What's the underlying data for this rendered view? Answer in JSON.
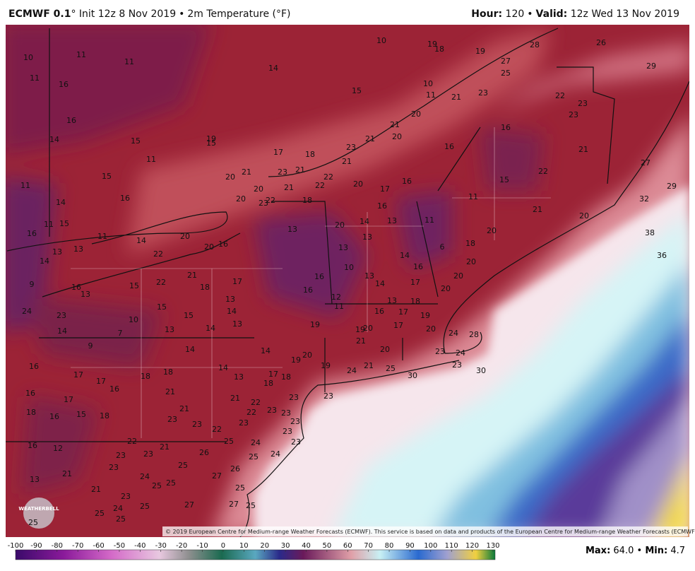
{
  "header": {
    "model": "ECMWF 0.1",
    "init": "° Init 12z 8 Nov 2019",
    "separator": "•",
    "field": "2m Temperature (°F)",
    "hour_label": "Hour:",
    "hour": "120",
    "valid_label": "Valid:",
    "valid": "12z Wed 13 Nov 2019"
  },
  "map": {
    "logo": "WEATHERBELL",
    "copyright": "© 2019 European Centre for Medium-range Weather Forecasts (ECMWF). This service is based on data and products of the European Centre for Medium-range Weather Forecasts (ECMWF).",
    "labels": [
      10,
      11,
      11,
      11,
      16,
      14,
      15,
      10,
      19,
      18,
      19,
      27,
      25,
      28,
      26,
      29,
      10,
      11,
      21,
      23,
      22,
      23,
      23,
      20,
      21,
      20,
      21,
      23,
      21,
      18,
      17,
      19,
      15,
      15,
      16,
      14,
      11,
      15,
      16,
      20,
      21,
      23,
      21,
      22,
      22,
      20,
      20,
      21,
      22,
      23,
      18,
      20,
      17,
      16,
      16,
      16,
      22,
      21,
      15,
      11,
      21,
      27,
      29,
      32,
      38,
      36,
      20,
      14,
      11,
      15,
      16,
      11,
      11,
      13,
      13,
      14,
      9,
      14,
      22,
      20,
      20,
      16,
      13,
      20,
      14,
      13,
      16,
      13,
      13,
      10,
      13,
      14,
      16,
      11,
      6,
      18,
      20,
      20,
      20,
      20,
      17,
      14,
      13,
      18,
      16,
      17,
      19,
      12,
      11,
      16,
      16,
      17,
      21,
      18,
      22,
      15,
      16,
      13,
      24,
      23,
      15,
      15,
      13,
      14,
      13,
      10,
      7,
      14,
      13,
      14,
      9,
      14,
      14,
      19,
      19,
      20,
      17,
      20,
      24,
      28,
      21,
      20,
      23,
      24,
      20,
      19,
      19,
      24,
      21,
      25,
      30,
      23,
      30,
      16,
      17,
      17,
      18,
      18,
      16,
      14,
      13,
      17,
      18,
      18,
      16,
      17,
      21,
      21,
      22,
      23,
      23,
      18,
      16,
      15,
      18,
      21,
      23,
      22,
      23,
      23,
      23,
      23,
      23,
      22,
      23,
      16,
      12,
      22,
      21,
      25,
      24,
      23,
      23,
      23,
      26,
      25,
      23,
      21,
      24,
      25,
      26,
      13,
      24,
      25,
      25,
      27,
      21,
      23,
      25,
      27,
      25,
      24,
      25,
      25,
      27,
      25,
      25
    ]
  },
  "legend": {
    "ticks": [
      -100,
      -90,
      -80,
      -70,
      -60,
      -50,
      -40,
      -30,
      -20,
      -10,
      0,
      10,
      20,
      30,
      40,
      50,
      60,
      70,
      80,
      90,
      100,
      110,
      120,
      130
    ]
  },
  "footer": {
    "max_label": "Max:",
    "max": "64.0",
    "separator": "•",
    "min_label": "Min:",
    "min": "4.7"
  }
}
